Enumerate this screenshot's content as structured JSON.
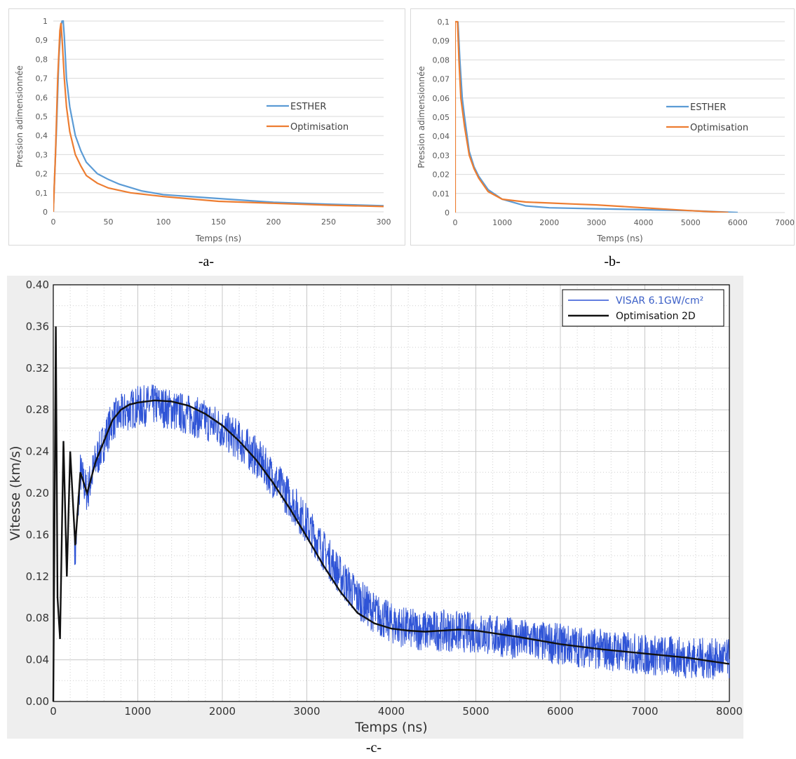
{
  "labels": {
    "a": "-a-",
    "b": "-b-",
    "c": "-c-"
  },
  "colors": {
    "esther": "#5b9bd5",
    "optim": "#ed7d31",
    "visar": "#2f54d6",
    "opt2d": "#111111"
  },
  "chart_data": [
    {
      "type": "line",
      "xlabel": "Temps (ns)",
      "ylabel": "Pression adimensionnée",
      "xlim": [
        0,
        300
      ],
      "ylim": [
        0,
        1
      ],
      "xticks": [
        0,
        50,
        100,
        150,
        200,
        250,
        300
      ],
      "yticks": [
        0,
        0.1,
        0.2,
        0.3,
        0.4,
        0.5,
        0.6,
        0.7,
        0.8,
        0.9,
        1
      ],
      "ytick_labels": [
        "0",
        "0,1",
        "0,2",
        "0,3",
        "0,4",
        "0,5",
        "0,6",
        "0,7",
        "0,8",
        "0,9",
        "1"
      ],
      "legend_position": "right",
      "grid": true,
      "series": [
        {
          "name": "ESTHER",
          "color": "#5b9bd5",
          "x": [
            0,
            3,
            5,
            7,
            8,
            9,
            10,
            12,
            15,
            20,
            25,
            30,
            40,
            50,
            60,
            80,
            100,
            150,
            200,
            250,
            300
          ],
          "y": [
            0,
            0.45,
            0.8,
            0.98,
            1.0,
            1.0,
            0.92,
            0.7,
            0.55,
            0.4,
            0.32,
            0.26,
            0.2,
            0.17,
            0.145,
            0.11,
            0.09,
            0.07,
            0.05,
            0.04,
            0.032
          ]
        },
        {
          "name": "Optimisation",
          "color": "#ed7d31",
          "x": [
            0,
            2,
            4,
            6,
            7,
            8,
            10,
            12,
            15,
            20,
            25,
            30,
            40,
            50,
            70,
            100,
            150,
            200,
            250,
            300
          ],
          "y": [
            0,
            0.3,
            0.7,
            0.95,
            0.99,
            0.9,
            0.7,
            0.55,
            0.42,
            0.3,
            0.24,
            0.19,
            0.15,
            0.125,
            0.1,
            0.08,
            0.055,
            0.045,
            0.035,
            0.028
          ]
        }
      ]
    },
    {
      "type": "line",
      "xlabel": "Temps (ns)",
      "ylabel": "Pression adimensionnée",
      "xlim": [
        0,
        7000
      ],
      "ylim": [
        0,
        0.1
      ],
      "xticks": [
        0,
        1000,
        2000,
        3000,
        4000,
        5000,
        6000,
        7000
      ],
      "yticks": [
        0,
        0.01,
        0.02,
        0.03,
        0.04,
        0.05,
        0.06,
        0.07,
        0.08,
        0.09,
        0.1
      ],
      "ytick_labels": [
        "0",
        "0,01",
        "0,02",
        "0,03",
        "0,04",
        "0,05",
        "0,06",
        "0,07",
        "0,08",
        "0,09",
        "0,1"
      ],
      "legend_position": "right",
      "grid": true,
      "series": [
        {
          "name": "ESTHER",
          "color": "#5b9bd5",
          "x": [
            60,
            100,
            150,
            200,
            300,
            400,
            500,
            700,
            1000,
            1500,
            2000,
            3000,
            4000,
            5000,
            6000
          ],
          "y": [
            0.1,
            0.08,
            0.06,
            0.05,
            0.032,
            0.024,
            0.019,
            0.012,
            0.007,
            0.0035,
            0.0025,
            0.002,
            0.0015,
            0.001,
            0.0
          ]
        },
        {
          "name": "Optimisation",
          "color": "#ed7d31",
          "x": [
            0,
            0,
            50,
            80,
            120,
            200,
            300,
            400,
            500,
            700,
            1000,
            1500,
            2000,
            2500,
            3000,
            4000,
            5000,
            5800
          ],
          "y": [
            0,
            0.1,
            0.1,
            0.08,
            0.06,
            0.045,
            0.03,
            0.023,
            0.018,
            0.011,
            0.007,
            0.0055,
            0.005,
            0.0045,
            0.004,
            0.0025,
            0.001,
            0.0
          ]
        }
      ]
    },
    {
      "type": "line",
      "xlabel": "Temps (ns)",
      "ylabel": "Vitesse (km/s)",
      "xlim": [
        0,
        8000
      ],
      "ylim": [
        0,
        0.4
      ],
      "xticks": [
        0,
        1000,
        2000,
        3000,
        4000,
        5000,
        6000,
        7000,
        8000
      ],
      "yticks": [
        0,
        0.04,
        0.08,
        0.12,
        0.16,
        0.2,
        0.24,
        0.28,
        0.32,
        0.36,
        0.4
      ],
      "ytick_labels": [
        "0.00",
        "0.04",
        "0.08",
        "0.12",
        "0.16",
        "0.20",
        "0.24",
        "0.28",
        "0.32",
        "0.36",
        "0.40"
      ],
      "legend_position": "top-right",
      "grid": true,
      "series": [
        {
          "name": "VISAR 6.1GW/cm²",
          "color": "#2f54d6",
          "x": [
            0,
            30,
            50,
            80,
            120,
            160,
            200,
            260,
            320,
            400,
            500,
            600,
            700,
            800,
            900,
            1000,
            1200,
            1400,
            1600,
            1800,
            2000,
            2200,
            2400,
            2600,
            2800,
            3000,
            3200,
            3400,
            3600,
            3800,
            4000,
            4200,
            4400,
            4600,
            4800,
            5000,
            5500,
            6000,
            6500,
            7000,
            7500,
            8000
          ],
          "y": [
            0,
            0.35,
            0.1,
            0.06,
            0.25,
            0.12,
            0.24,
            0.14,
            0.22,
            0.2,
            0.23,
            0.25,
            0.27,
            0.275,
            0.28,
            0.283,
            0.285,
            0.28,
            0.275,
            0.27,
            0.262,
            0.25,
            0.235,
            0.215,
            0.195,
            0.17,
            0.145,
            0.12,
            0.1,
            0.085,
            0.075,
            0.07,
            0.068,
            0.068,
            0.067,
            0.066,
            0.06,
            0.055,
            0.05,
            0.045,
            0.042,
            0.04
          ],
          "noise_band": 0.02
        },
        {
          "name": "Optimisation 2D",
          "color": "#111111",
          "x": [
            0,
            30,
            50,
            80,
            120,
            160,
            200,
            260,
            320,
            400,
            500,
            600,
            700,
            800,
            900,
            1000,
            1200,
            1400,
            1600,
            1800,
            2000,
            2200,
            2400,
            2600,
            2800,
            3000,
            3200,
            3400,
            3600,
            3700,
            3800,
            4000,
            4200,
            4400,
            4600,
            4800,
            5000,
            5500,
            6000,
            6500,
            7000,
            7500,
            8000
          ],
          "y": [
            0,
            0.36,
            0.1,
            0.06,
            0.25,
            0.12,
            0.24,
            0.15,
            0.22,
            0.2,
            0.23,
            0.25,
            0.27,
            0.28,
            0.285,
            0.287,
            0.289,
            0.288,
            0.284,
            0.276,
            0.265,
            0.25,
            0.232,
            0.21,
            0.185,
            0.158,
            0.13,
            0.105,
            0.085,
            0.08,
            0.075,
            0.07,
            0.068,
            0.067,
            0.068,
            0.069,
            0.068,
            0.062,
            0.055,
            0.05,
            0.046,
            0.042,
            0.036
          ]
        }
      ]
    }
  ]
}
